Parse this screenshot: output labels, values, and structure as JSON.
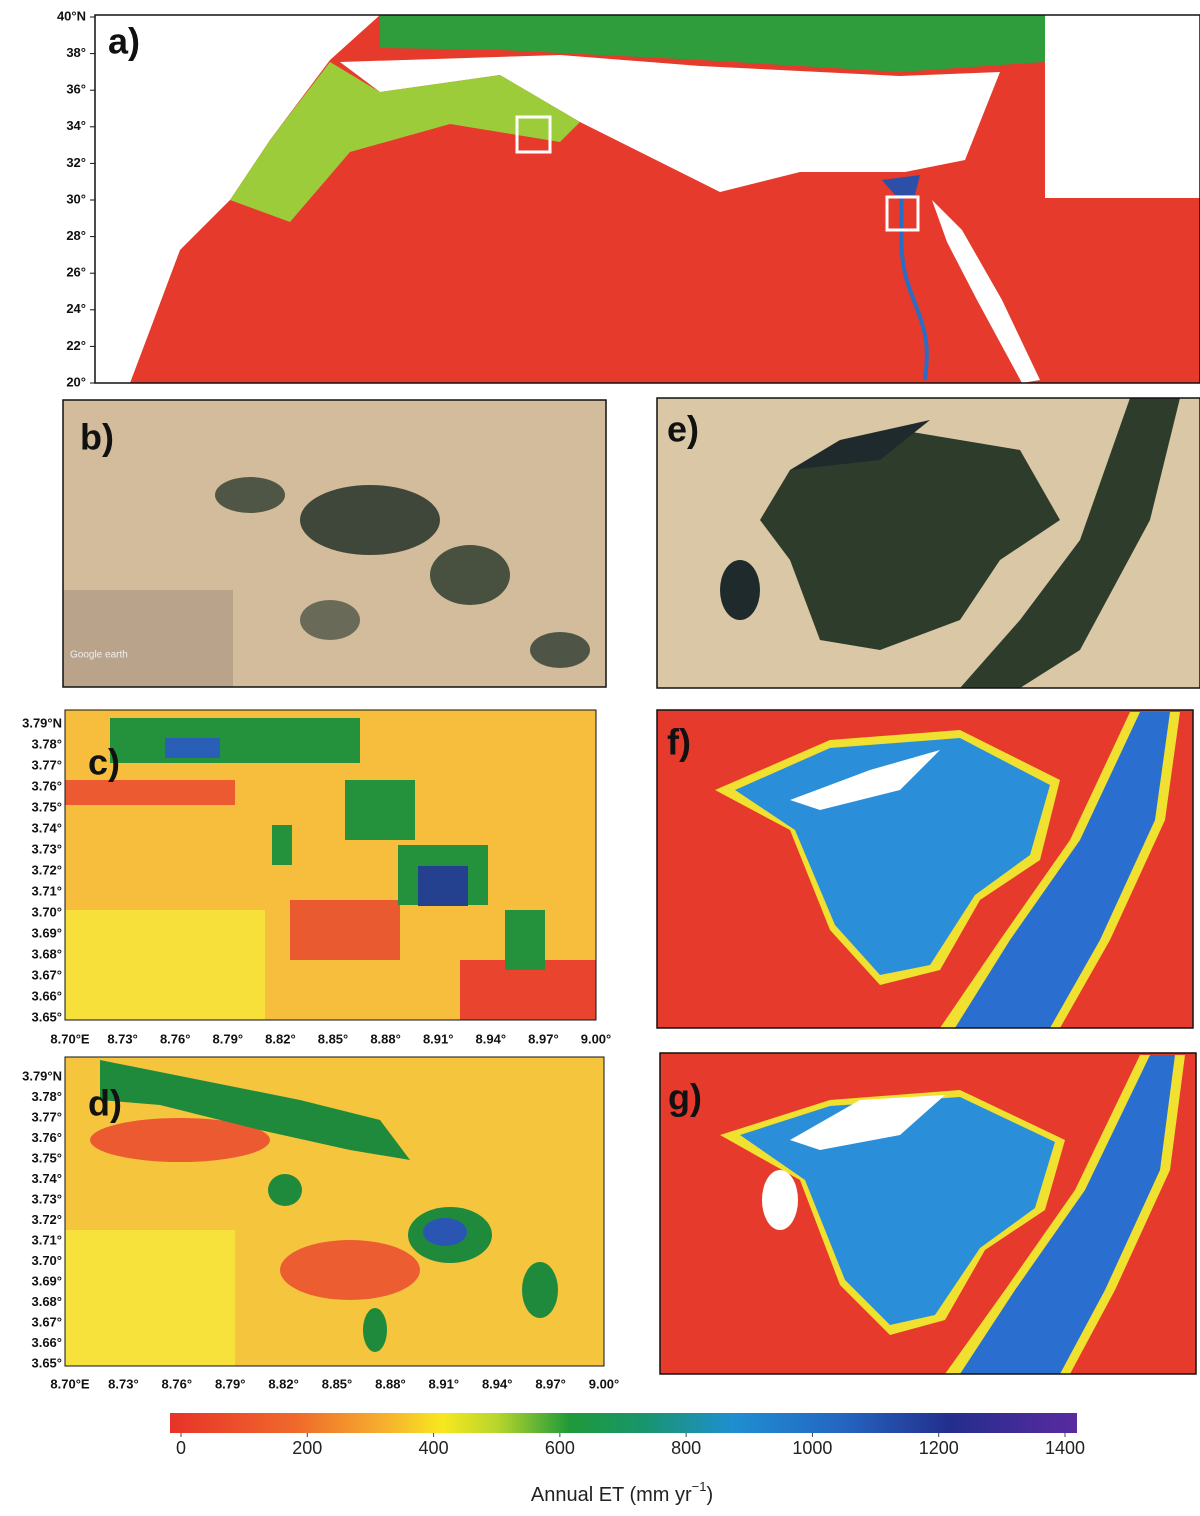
{
  "panels": {
    "a": {
      "label": "a)",
      "lat_ticks": [
        "40°N",
        "38°",
        "36°",
        "34°",
        "32°",
        "30°",
        "28°",
        "26°",
        "24°",
        "22°",
        "20°"
      ]
    },
    "b": {
      "label": "b)",
      "watermark": "Google earth"
    },
    "c": {
      "label": "c)",
      "lat_ticks": [
        "3.79°N",
        "3.78°",
        "3.77°",
        "3.76°",
        "3.75°",
        "3.74°",
        "3.73°",
        "3.72°",
        "3.71°",
        "3.70°",
        "3.69°",
        "3.68°",
        "3.67°",
        "3.66°",
        "3.65°"
      ],
      "lon_ticks": [
        "8.70°E",
        "8.73°",
        "8.76°",
        "8.79°",
        "8.82°",
        "8.85°",
        "8.88°",
        "8.91°",
        "8.94°",
        "8.97°",
        "9.00°"
      ]
    },
    "d": {
      "label": "d)",
      "lat_ticks": [
        "3.79°N",
        "3.78°",
        "3.77°",
        "3.76°",
        "3.75°",
        "3.74°",
        "3.73°",
        "3.72°",
        "3.71°",
        "3.70°",
        "3.69°",
        "3.68°",
        "3.67°",
        "3.66°",
        "3.65°"
      ],
      "lon_ticks": [
        "8.70°E",
        "8.73°",
        "8.76°",
        "8.79°",
        "8.82°",
        "8.85°",
        "8.88°",
        "8.91°",
        "8.94°",
        "8.97°",
        "9.00°"
      ]
    },
    "e": {
      "label": "e)"
    },
    "f": {
      "label": "f)"
    },
    "g": {
      "label": "g)"
    }
  },
  "colorbar": {
    "ticks": [
      0,
      200,
      400,
      600,
      800,
      1000,
      1200,
      1400
    ],
    "label": "Annual ET (mm yr",
    "label_exponent": "−1",
    "label_close": ")"
  }
}
